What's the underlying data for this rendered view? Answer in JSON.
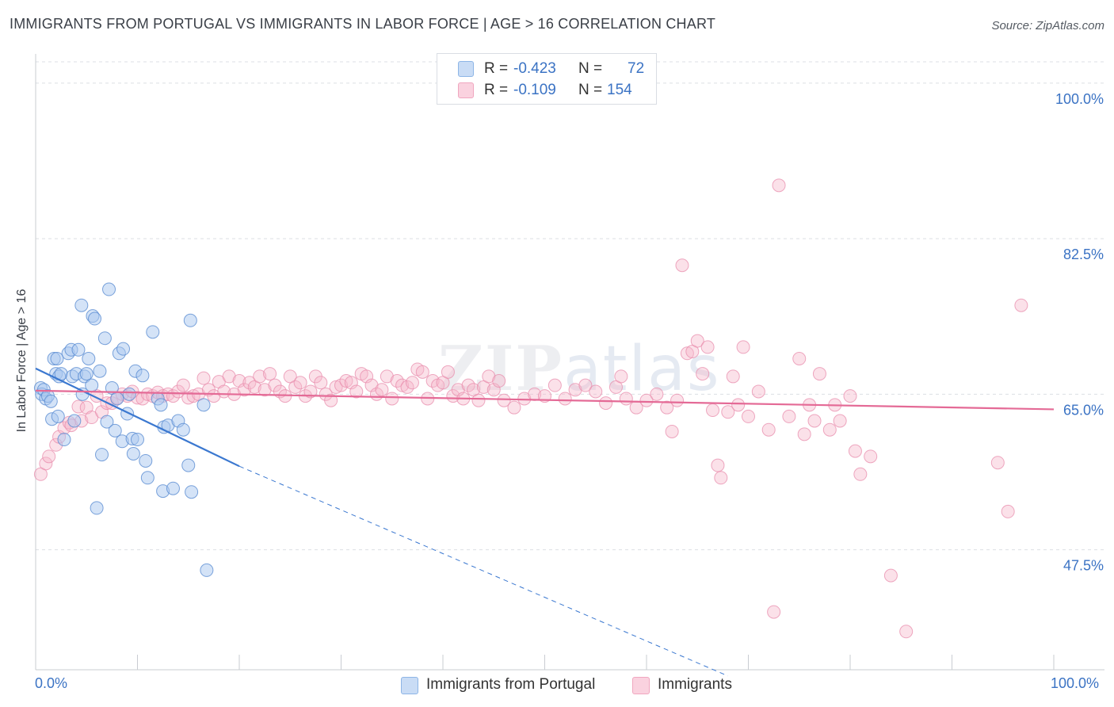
{
  "title": "IMMIGRANTS FROM PORTUGAL VS IMMIGRANTS IN LABOR FORCE | AGE > 16 CORRELATION CHART",
  "source": "Source: ZipAtlas.com",
  "watermark": {
    "bold": "ZIP",
    "light": "atlas"
  },
  "stats": [
    {
      "r_label": "R =",
      "r_value": "-0.423",
      "n_label": "N =",
      "n_value": "72",
      "color": "#a9c8ef"
    },
    {
      "r_label": "R =",
      "r_value": "-0.109",
      "n_label": "N =",
      "n_value": "154",
      "color": "#f5b8cb"
    }
  ],
  "legend": [
    {
      "label": "Immigrants from Portugal",
      "color": "#a9c8ef"
    },
    {
      "label": "Immigrants",
      "color": "#f5b8cb"
    }
  ],
  "chart_data": {
    "type": "scatter",
    "title": "IMMIGRANTS FROM PORTUGAL VS IMMIGRANTS IN LABOR FORCE | AGE > 16 CORRELATION CHART",
    "xlabel": "",
    "ylabel": "In Labor Force | Age > 16",
    "xlim": [
      0,
      100
    ],
    "ylim": [
      34,
      104
    ],
    "x_tick_labels": [
      "0.0%",
      "100.0%"
    ],
    "y_ticks": [
      47.5,
      65.0,
      82.5,
      100.0
    ],
    "y_tick_labels": [
      "47.5%",
      "65.0%",
      "82.5%",
      "100.0%"
    ],
    "grid": "horizontal-dashed",
    "legend_position": "bottom-center",
    "colors": {
      "blue": "#6ea3dd",
      "pink": "#ec91b0",
      "blue_line": "#3b78d0",
      "pink_line": "#e46a96",
      "tick_text": "#3b73c4"
    },
    "series": [
      {
        "name": "Immigrants from Portugal",
        "color": "#a9c8ef",
        "trend": {
          "x": [
            0,
            20
          ],
          "y": [
            67.9,
            56.9
          ],
          "dashed_to": [
            68,
            33.3
          ]
        },
        "points": [
          [
            0.5,
            65.7
          ],
          [
            0.6,
            65.0
          ],
          [
            0.8,
            65.5
          ],
          [
            1.0,
            64.5
          ],
          [
            1.2,
            64.8
          ],
          [
            1.5,
            64.2
          ],
          [
            1.6,
            62.2
          ],
          [
            1.8,
            69.0
          ],
          [
            2.0,
            67.3
          ],
          [
            2.1,
            69.0
          ],
          [
            2.2,
            62.5
          ],
          [
            2.3,
            67.0
          ],
          [
            2.5,
            67.3
          ],
          [
            2.8,
            59.9
          ],
          [
            3.2,
            69.6
          ],
          [
            3.5,
            70.0
          ],
          [
            3.6,
            67.0
          ],
          [
            3.8,
            62.0
          ],
          [
            4.0,
            67.3
          ],
          [
            4.2,
            70.0
          ],
          [
            4.5,
            75.0
          ],
          [
            4.6,
            65.0
          ],
          [
            4.8,
            67.0
          ],
          [
            5.0,
            67.3
          ],
          [
            5.2,
            69.0
          ],
          [
            5.5,
            66.0
          ],
          [
            5.6,
            73.8
          ],
          [
            5.8,
            73.5
          ],
          [
            6.0,
            52.2
          ],
          [
            6.3,
            67.6
          ],
          [
            6.5,
            58.2
          ],
          [
            6.8,
            71.3
          ],
          [
            7.0,
            61.9
          ],
          [
            7.2,
            76.8
          ],
          [
            7.5,
            65.7
          ],
          [
            7.8,
            60.9
          ],
          [
            8.0,
            64.5
          ],
          [
            8.2,
            69.6
          ],
          [
            8.5,
            59.7
          ],
          [
            8.6,
            70.1
          ],
          [
            9.0,
            62.8
          ],
          [
            9.2,
            65.0
          ],
          [
            9.5,
            60.0
          ],
          [
            9.6,
            58.3
          ],
          [
            9.8,
            67.6
          ],
          [
            10.0,
            59.9
          ],
          [
            10.5,
            67.1
          ],
          [
            10.8,
            57.5
          ],
          [
            11.0,
            55.6
          ],
          [
            11.5,
            72.0
          ],
          [
            12.0,
            64.5
          ],
          [
            12.3,
            63.8
          ],
          [
            12.5,
            54.1
          ],
          [
            12.6,
            61.3
          ],
          [
            13.0,
            61.5
          ],
          [
            13.5,
            54.4
          ],
          [
            14.0,
            62.0
          ],
          [
            14.5,
            61.0
          ],
          [
            15.0,
            57.0
          ],
          [
            15.2,
            73.3
          ],
          [
            15.3,
            54.0
          ],
          [
            16.5,
            63.8
          ],
          [
            16.8,
            45.2
          ]
        ]
      },
      {
        "name": "Immigrants",
        "color": "#f5b8cb",
        "trend": {
          "x": [
            0,
            100
          ],
          "y": [
            65.4,
            63.3
          ]
        },
        "points": [
          [
            0.5,
            56.0
          ],
          [
            1.0,
            57.2
          ],
          [
            1.3,
            58.0
          ],
          [
            2.0,
            59.3
          ],
          [
            2.3,
            60.2
          ],
          [
            2.8,
            61.2
          ],
          [
            3.3,
            61.8
          ],
          [
            3.5,
            61.5
          ],
          [
            4.2,
            63.6
          ],
          [
            4.5,
            62.0
          ],
          [
            5.0,
            63.5
          ],
          [
            5.5,
            62.4
          ],
          [
            6.0,
            64.8
          ],
          [
            6.5,
            63.0
          ],
          [
            7.0,
            64.0
          ],
          [
            7.5,
            64.0
          ],
          [
            8.0,
            64.6
          ],
          [
            8.5,
            65.0
          ],
          [
            9.0,
            64.8
          ],
          [
            9.5,
            65.3
          ],
          [
            10.0,
            64.6
          ],
          [
            10.5,
            64.5
          ],
          [
            11.0,
            65.0
          ],
          [
            11.5,
            64.8
          ],
          [
            12.0,
            65.2
          ],
          [
            12.5,
            64.8
          ],
          [
            13.0,
            65.0
          ],
          [
            13.5,
            64.8
          ],
          [
            14.0,
            65.3
          ],
          [
            14.5,
            66.0
          ],
          [
            15.0,
            64.6
          ],
          [
            15.5,
            64.8
          ],
          [
            16.0,
            65.0
          ],
          [
            16.5,
            66.8
          ],
          [
            17.0,
            65.5
          ],
          [
            17.5,
            64.8
          ],
          [
            18.0,
            66.4
          ],
          [
            18.5,
            65.3
          ],
          [
            19.0,
            67.0
          ],
          [
            19.5,
            65.0
          ],
          [
            20.0,
            66.5
          ],
          [
            20.5,
            65.5
          ],
          [
            21.0,
            66.3
          ],
          [
            21.5,
            65.8
          ],
          [
            22.0,
            67.0
          ],
          [
            22.5,
            65.5
          ],
          [
            23.0,
            67.3
          ],
          [
            23.5,
            66.0
          ],
          [
            24.0,
            65.3
          ],
          [
            24.5,
            64.8
          ],
          [
            25.0,
            67.0
          ],
          [
            25.5,
            65.8
          ],
          [
            26.0,
            66.3
          ],
          [
            26.5,
            64.8
          ],
          [
            27.0,
            65.3
          ],
          [
            27.5,
            67.0
          ],
          [
            28.0,
            66.3
          ],
          [
            28.5,
            65.0
          ],
          [
            29.0,
            64.3
          ],
          [
            29.5,
            65.8
          ],
          [
            30.0,
            66.0
          ],
          [
            30.5,
            66.5
          ],
          [
            31.0,
            66.3
          ],
          [
            31.5,
            65.3
          ],
          [
            32.0,
            67.3
          ],
          [
            32.5,
            67.0
          ],
          [
            33.0,
            66.0
          ],
          [
            33.5,
            65.0
          ],
          [
            34.0,
            65.5
          ],
          [
            34.5,
            67.0
          ],
          [
            35.0,
            64.5
          ],
          [
            35.5,
            66.5
          ],
          [
            36.0,
            66.0
          ],
          [
            36.5,
            65.8
          ],
          [
            37.0,
            66.3
          ],
          [
            37.5,
            67.8
          ],
          [
            38.0,
            67.5
          ],
          [
            38.5,
            64.5
          ],
          [
            39.0,
            66.5
          ],
          [
            39.5,
            66.0
          ],
          [
            40.0,
            66.3
          ],
          [
            40.5,
            67.5
          ],
          [
            41.0,
            64.8
          ],
          [
            41.5,
            65.5
          ],
          [
            42.0,
            64.5
          ],
          [
            42.5,
            66.0
          ],
          [
            43.0,
            65.5
          ],
          [
            43.5,
            64.3
          ],
          [
            44.0,
            65.8
          ],
          [
            44.5,
            67.0
          ],
          [
            45.0,
            65.5
          ],
          [
            45.5,
            66.5
          ],
          [
            46.0,
            64.3
          ],
          [
            47.0,
            63.5
          ],
          [
            48.0,
            64.5
          ],
          [
            49.0,
            65.0
          ],
          [
            50.0,
            64.8
          ],
          [
            51.0,
            66.0
          ],
          [
            52.0,
            64.5
          ],
          [
            53.0,
            65.5
          ],
          [
            54.0,
            66.0
          ],
          [
            55.0,
            65.3
          ],
          [
            56.0,
            64.0
          ],
          [
            57.0,
            65.8
          ],
          [
            57.5,
            67.0
          ],
          [
            58.0,
            64.5
          ],
          [
            59.0,
            63.5
          ],
          [
            60.0,
            64.3
          ],
          [
            61.0,
            65.0
          ],
          [
            62.0,
            63.5
          ],
          [
            62.5,
            60.8
          ],
          [
            63.0,
            64.3
          ],
          [
            64.0,
            69.6
          ],
          [
            64.5,
            69.8
          ],
          [
            65.0,
            71.0
          ],
          [
            65.5,
            67.3
          ],
          [
            66.0,
            70.3
          ],
          [
            66.5,
            63.2
          ],
          [
            67.0,
            57.0
          ],
          [
            67.3,
            55.6
          ],
          [
            68.0,
            63.0
          ],
          [
            68.5,
            67.0
          ],
          [
            69.0,
            63.8
          ],
          [
            69.5,
            70.3
          ],
          [
            70.0,
            62.5
          ],
          [
            71.0,
            65.3
          ],
          [
            72.0,
            61.0
          ],
          [
            72.5,
            40.5
          ],
          [
            73.0,
            88.5
          ],
          [
            74.0,
            62.5
          ],
          [
            75.0,
            69.0
          ],
          [
            75.5,
            60.5
          ],
          [
            76.0,
            63.8
          ],
          [
            76.5,
            62.0
          ],
          [
            77.0,
            67.3
          ],
          [
            78.0,
            61.0
          ],
          [
            78.5,
            63.8
          ],
          [
            79.0,
            62.0
          ],
          [
            80.0,
            64.8
          ],
          [
            80.5,
            58.6
          ],
          [
            81.0,
            56.0
          ],
          [
            82.0,
            58.0
          ],
          [
            84.0,
            44.6
          ],
          [
            85.5,
            38.3
          ],
          [
            63.5,
            79.5
          ],
          [
            94.5,
            57.3
          ],
          [
            95.5,
            51.8
          ],
          [
            96.8,
            75.0
          ]
        ]
      }
    ]
  }
}
